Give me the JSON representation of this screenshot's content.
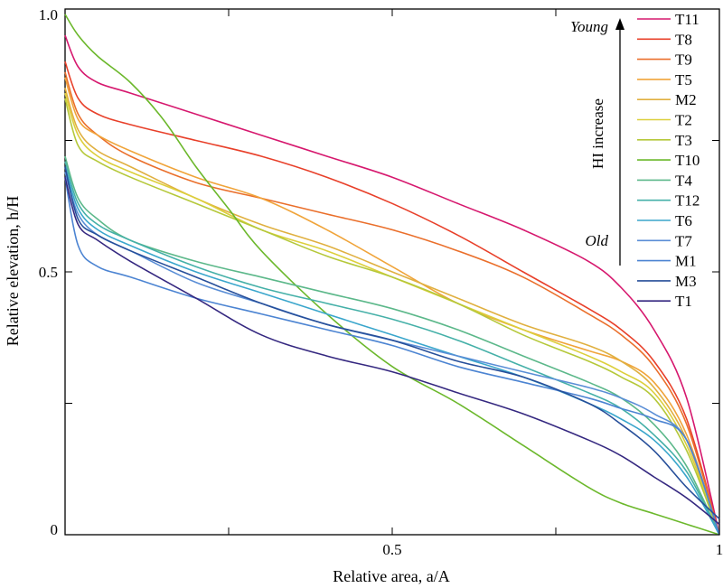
{
  "chart_data": {
    "type": "line",
    "xlabel": "Relative area, a/A",
    "ylabel": "Relative elevation, h/H",
    "xlim": [
      0,
      1
    ],
    "ylim": [
      0,
      1
    ],
    "x_ticks": [
      0.25,
      0.5,
      0.75,
      1
    ],
    "x_tick_labels": [
      "",
      "0.5",
      "",
      "1"
    ],
    "y_ticks": [
      0,
      0.25,
      0.5,
      0.75,
      1
    ],
    "y_tick_labels": [
      "0",
      "",
      "0.5",
      "",
      "1.0"
    ],
    "grid": false,
    "legend_position": "top-right",
    "annotations": {
      "young": "Young",
      "old": "Old",
      "arrow_label": "HI increase"
    },
    "series": [
      {
        "name": "T11",
        "color": "#d6186e",
        "x": [
          0,
          0.02,
          0.05,
          0.1,
          0.2,
          0.3,
          0.4,
          0.5,
          0.6,
          0.7,
          0.8,
          0.85,
          0.9,
          0.95,
          1
        ],
        "y": [
          0.95,
          0.89,
          0.86,
          0.84,
          0.8,
          0.76,
          0.72,
          0.68,
          0.63,
          0.58,
          0.52,
          0.47,
          0.39,
          0.26,
          0
        ]
      },
      {
        "name": "T8",
        "color": "#e8402a",
        "x": [
          0,
          0.02,
          0.05,
          0.1,
          0.2,
          0.3,
          0.4,
          0.5,
          0.6,
          0.7,
          0.8,
          0.85,
          0.9,
          0.95,
          1
        ],
        "y": [
          0.9,
          0.83,
          0.8,
          0.78,
          0.75,
          0.72,
          0.68,
          0.63,
          0.57,
          0.5,
          0.43,
          0.39,
          0.33,
          0.22,
          0
        ]
      },
      {
        "name": "T9",
        "color": "#ea6f2b",
        "x": [
          0,
          0.02,
          0.05,
          0.1,
          0.2,
          0.3,
          0.4,
          0.5,
          0.6,
          0.7,
          0.8,
          0.85,
          0.9,
          0.95,
          1
        ],
        "y": [
          0.88,
          0.8,
          0.76,
          0.72,
          0.67,
          0.64,
          0.61,
          0.58,
          0.54,
          0.49,
          0.42,
          0.38,
          0.32,
          0.21,
          0
        ]
      },
      {
        "name": "T5",
        "color": "#f0a43a",
        "x": [
          0,
          0.02,
          0.05,
          0.1,
          0.2,
          0.3,
          0.4,
          0.5,
          0.6,
          0.7,
          0.8,
          0.85,
          0.9,
          0.95,
          1
        ],
        "y": [
          0.87,
          0.79,
          0.76,
          0.73,
          0.68,
          0.64,
          0.58,
          0.51,
          0.44,
          0.39,
          0.35,
          0.33,
          0.29,
          0.19,
          0
        ]
      },
      {
        "name": "M2",
        "color": "#e0b040",
        "x": [
          0,
          0.02,
          0.05,
          0.1,
          0.2,
          0.3,
          0.4,
          0.5,
          0.6,
          0.7,
          0.8,
          0.85,
          0.9,
          0.95,
          1
        ],
        "y": [
          0.85,
          0.77,
          0.73,
          0.7,
          0.64,
          0.59,
          0.55,
          0.5,
          0.45,
          0.4,
          0.36,
          0.33,
          0.28,
          0.18,
          0
        ]
      },
      {
        "name": "T2",
        "color": "#dccf3c",
        "x": [
          0,
          0.02,
          0.05,
          0.1,
          0.2,
          0.3,
          0.4,
          0.5,
          0.6,
          0.7,
          0.8,
          0.85,
          0.9,
          0.95,
          1
        ],
        "y": [
          0.84,
          0.76,
          0.72,
          0.69,
          0.64,
          0.58,
          0.54,
          0.49,
          0.44,
          0.39,
          0.34,
          0.31,
          0.27,
          0.17,
          0
        ]
      },
      {
        "name": "T3",
        "color": "#b5c83a",
        "x": [
          0,
          0.02,
          0.05,
          0.1,
          0.2,
          0.3,
          0.4,
          0.5,
          0.6,
          0.7,
          0.8,
          0.85,
          0.9,
          0.95,
          1
        ],
        "y": [
          0.83,
          0.74,
          0.71,
          0.68,
          0.63,
          0.58,
          0.53,
          0.49,
          0.44,
          0.38,
          0.33,
          0.3,
          0.26,
          0.16,
          0
        ]
      },
      {
        "name": "T10",
        "color": "#6cb82c",
        "x": [
          0,
          0.02,
          0.05,
          0.1,
          0.15,
          0.2,
          0.25,
          0.3,
          0.4,
          0.5,
          0.6,
          0.7,
          0.8,
          0.85,
          0.9,
          0.95,
          1
        ],
        "y": [
          0.99,
          0.95,
          0.91,
          0.86,
          0.79,
          0.7,
          0.62,
          0.54,
          0.42,
          0.32,
          0.25,
          0.17,
          0.09,
          0.06,
          0.04,
          0.02,
          0
        ]
      },
      {
        "name": "T4",
        "color": "#5cb88a",
        "x": [
          0,
          0.02,
          0.05,
          0.1,
          0.2,
          0.3,
          0.4,
          0.5,
          0.6,
          0.7,
          0.8,
          0.85,
          0.9,
          0.95,
          1
        ],
        "y": [
          0.72,
          0.64,
          0.6,
          0.56,
          0.52,
          0.49,
          0.46,
          0.43,
          0.39,
          0.34,
          0.29,
          0.26,
          0.21,
          0.13,
          0
        ]
      },
      {
        "name": "T12",
        "color": "#45b0a8",
        "x": [
          0,
          0.02,
          0.05,
          0.1,
          0.2,
          0.3,
          0.4,
          0.5,
          0.6,
          0.7,
          0.8,
          0.85,
          0.9,
          0.95,
          1
        ],
        "y": [
          0.71,
          0.63,
          0.59,
          0.56,
          0.51,
          0.47,
          0.44,
          0.41,
          0.37,
          0.32,
          0.27,
          0.24,
          0.19,
          0.12,
          0
        ]
      },
      {
        "name": "T6",
        "color": "#3aa6cc",
        "x": [
          0,
          0.02,
          0.05,
          0.1,
          0.2,
          0.3,
          0.4,
          0.5,
          0.6,
          0.7,
          0.8,
          0.85,
          0.9,
          0.95,
          1
        ],
        "y": [
          0.7,
          0.62,
          0.58,
          0.55,
          0.5,
          0.46,
          0.42,
          0.38,
          0.34,
          0.3,
          0.25,
          0.22,
          0.18,
          0.11,
          0
        ]
      },
      {
        "name": "T7",
        "color": "#5a8ed6",
        "x": [
          0,
          0.02,
          0.05,
          0.1,
          0.2,
          0.3,
          0.4,
          0.5,
          0.6,
          0.7,
          0.8,
          0.85,
          0.9,
          0.95,
          1
        ],
        "y": [
          0.69,
          0.61,
          0.57,
          0.54,
          0.48,
          0.44,
          0.4,
          0.37,
          0.34,
          0.31,
          0.28,
          0.26,
          0.23,
          0.18,
          0
        ]
      },
      {
        "name": "M1",
        "color": "#4c84d2",
        "x": [
          0,
          0.02,
          0.05,
          0.1,
          0.2,
          0.3,
          0.4,
          0.5,
          0.6,
          0.7,
          0.8,
          0.85,
          0.9,
          0.95,
          1
        ],
        "y": [
          0.68,
          0.55,
          0.51,
          0.49,
          0.45,
          0.42,
          0.39,
          0.36,
          0.32,
          0.29,
          0.26,
          0.24,
          0.22,
          0.18,
          0
        ]
      },
      {
        "name": "M3",
        "color": "#274f9a",
        "x": [
          0,
          0.02,
          0.05,
          0.1,
          0.2,
          0.3,
          0.4,
          0.5,
          0.6,
          0.7,
          0.8,
          0.85,
          0.9,
          0.95,
          1
        ],
        "y": [
          0.7,
          0.6,
          0.57,
          0.54,
          0.49,
          0.44,
          0.4,
          0.37,
          0.33,
          0.3,
          0.25,
          0.21,
          0.16,
          0.09,
          0.03
        ]
      },
      {
        "name": "T1",
        "color": "#352880",
        "x": [
          0,
          0.02,
          0.05,
          0.1,
          0.2,
          0.3,
          0.4,
          0.5,
          0.6,
          0.7,
          0.8,
          0.85,
          0.9,
          0.95,
          1
        ],
        "y": [
          0.68,
          0.59,
          0.56,
          0.52,
          0.45,
          0.38,
          0.34,
          0.31,
          0.27,
          0.23,
          0.18,
          0.15,
          0.11,
          0.07,
          0.02
        ]
      }
    ]
  }
}
